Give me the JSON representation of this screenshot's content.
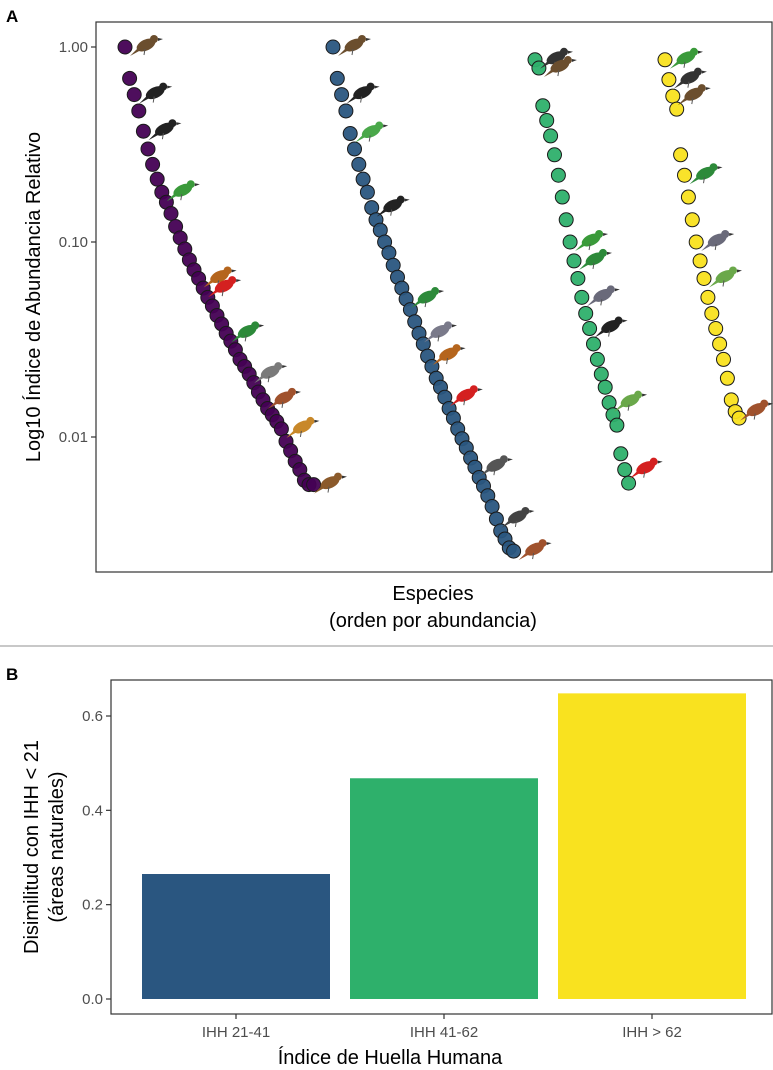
{
  "chart_data": [
    {
      "panel": "A",
      "type": "scatter",
      "xlabel_lines": [
        "Especies",
        "(orden por abundancia)"
      ],
      "ylabel": "Log10 Índice de Abundancia Relativo",
      "y_scale": "log10",
      "ylim": [
        0.002,
        1.5
      ],
      "y_ticks": [
        {
          "value": 1.0,
          "label": "1.00"
        },
        {
          "value": 0.1,
          "label": "0.10"
        },
        {
          "value": 0.01,
          "label": "0.01"
        }
      ],
      "grid": false,
      "legend": "none",
      "series": [
        {
          "color": "#440154",
          "values": [
            1.0,
            0.69,
            0.57,
            0.47,
            0.37,
            0.3,
            0.25,
            0.21,
            0.18,
            0.16,
            0.14,
            0.12,
            0.105,
            0.092,
            0.081,
            0.072,
            0.065,
            0.058,
            0.052,
            0.047,
            0.042,
            0.038,
            0.034,
            0.031,
            0.028,
            0.025,
            0.023,
            0.021,
            0.019,
            0.017,
            0.0155,
            0.014,
            0.013,
            0.012,
            0.011,
            0.0095,
            0.0085,
            0.0075,
            0.0068,
            0.006,
            0.0057,
            0.0057
          ]
        },
        {
          "color": "#2a5680",
          "values": [
            1.0,
            0.69,
            0.57,
            0.47,
            0.36,
            0.3,
            0.25,
            0.21,
            0.18,
            0.15,
            0.13,
            0.115,
            0.1,
            0.088,
            0.076,
            0.066,
            0.058,
            0.051,
            0.045,
            0.039,
            0.034,
            0.03,
            0.026,
            0.023,
            0.02,
            0.018,
            0.016,
            0.014,
            0.0125,
            0.011,
            0.0098,
            0.0088,
            0.0078,
            0.007,
            0.0062,
            0.0056,
            0.005,
            0.0044,
            0.0038,
            0.0033,
            0.003,
            0.0027,
            0.0026
          ]
        },
        {
          "color": "#2eb06b",
          "values": [
            0.86,
            0.78,
            0.5,
            0.42,
            0.35,
            0.28,
            0.22,
            0.17,
            0.13,
            0.1,
            0.08,
            0.065,
            0.052,
            0.043,
            0.036,
            0.03,
            0.025,
            0.021,
            0.018,
            0.015,
            0.013,
            0.0115,
            0.0082,
            0.0068,
            0.0058
          ]
        },
        {
          "color": "#f9e21f",
          "values": [
            0.86,
            0.68,
            0.56,
            0.48,
            0.28,
            0.22,
            0.17,
            0.13,
            0.1,
            0.08,
            0.065,
            0.052,
            0.043,
            0.036,
            0.03,
            0.025,
            0.02,
            0.0155,
            0.0135,
            0.0125
          ]
        }
      ],
      "bird_icons": [
        {
          "series": 0,
          "rank": 0,
          "color": "#6b4e2e"
        },
        {
          "series": 0,
          "rank": 2,
          "color": "#222222"
        },
        {
          "series": 0,
          "rank": 4,
          "color": "#222222"
        },
        {
          "series": 0,
          "rank": 8,
          "color": "#3a9a3a"
        },
        {
          "series": 0,
          "rank": 16,
          "color": "#b5651d"
        },
        {
          "series": 0,
          "rank": 17,
          "color": "#d42020"
        },
        {
          "series": 0,
          "rank": 22,
          "color": "#2d8a3a"
        },
        {
          "series": 0,
          "rank": 27,
          "color": "#7a7a7a"
        },
        {
          "series": 0,
          "rank": 30,
          "color": "#a0522d"
        },
        {
          "series": 0,
          "rank": 34,
          "color": "#c8882a"
        },
        {
          "series": 0,
          "rank": 40,
          "color": "#8b5a2b"
        },
        {
          "series": 1,
          "rank": 0,
          "color": "#6b4e2e"
        },
        {
          "series": 1,
          "rank": 2,
          "color": "#222222"
        },
        {
          "series": 1,
          "rank": 4,
          "color": "#4aa84a"
        },
        {
          "series": 1,
          "rank": 9,
          "color": "#222222"
        },
        {
          "series": 1,
          "rank": 17,
          "color": "#2d8a3a"
        },
        {
          "series": 1,
          "rank": 20,
          "color": "#7a7a8a"
        },
        {
          "series": 1,
          "rank": 22,
          "color": "#b5651d"
        },
        {
          "series": 1,
          "rank": 26,
          "color": "#d42020"
        },
        {
          "series": 1,
          "rank": 33,
          "color": "#555555"
        },
        {
          "series": 1,
          "rank": 38,
          "color": "#444444"
        },
        {
          "series": 1,
          "rank": 42,
          "color": "#a0522d"
        },
        {
          "series": 2,
          "rank": 0,
          "color": "#333333"
        },
        {
          "series": 2,
          "rank": 1,
          "color": "#6b4e2e"
        },
        {
          "series": 2,
          "rank": 9,
          "color": "#3a9a3a"
        },
        {
          "series": 2,
          "rank": 10,
          "color": "#2d8a3a"
        },
        {
          "series": 2,
          "rank": 12,
          "color": "#6a6a7a"
        },
        {
          "series": 2,
          "rank": 14,
          "color": "#222222"
        },
        {
          "series": 2,
          "rank": 19,
          "color": "#6aa84a"
        },
        {
          "series": 2,
          "rank": 23,
          "color": "#d42020"
        },
        {
          "series": 3,
          "rank": 0,
          "color": "#3a9a3a"
        },
        {
          "series": 3,
          "rank": 1,
          "color": "#333333"
        },
        {
          "series": 3,
          "rank": 2,
          "color": "#6b4e2e"
        },
        {
          "series": 3,
          "rank": 5,
          "color": "#2d8a3a"
        },
        {
          "series": 3,
          "rank": 8,
          "color": "#6a6a7a"
        },
        {
          "series": 3,
          "rank": 10,
          "color": "#6aa84a"
        },
        {
          "series": 3,
          "rank": 18,
          "color": "#a0522d"
        }
      ]
    },
    {
      "panel": "B",
      "type": "bar",
      "categories": [
        "IHH 21-41",
        "IHH 41-62",
        "IHH > 62"
      ],
      "values": [
        0.265,
        0.468,
        0.648
      ],
      "colors": [
        "#2a5680",
        "#2eb06b",
        "#f9e21f"
      ],
      "xlabel": "Índice de Huella Humana",
      "ylabel_lines": [
        "Disimilitud con IHH < 21",
        "(áreas naturales)"
      ],
      "ylim": [
        0,
        0.67
      ],
      "y_ticks": [
        "0.0",
        "0.2",
        "0.4",
        "0.6"
      ],
      "grid": false,
      "legend": "none"
    }
  ]
}
